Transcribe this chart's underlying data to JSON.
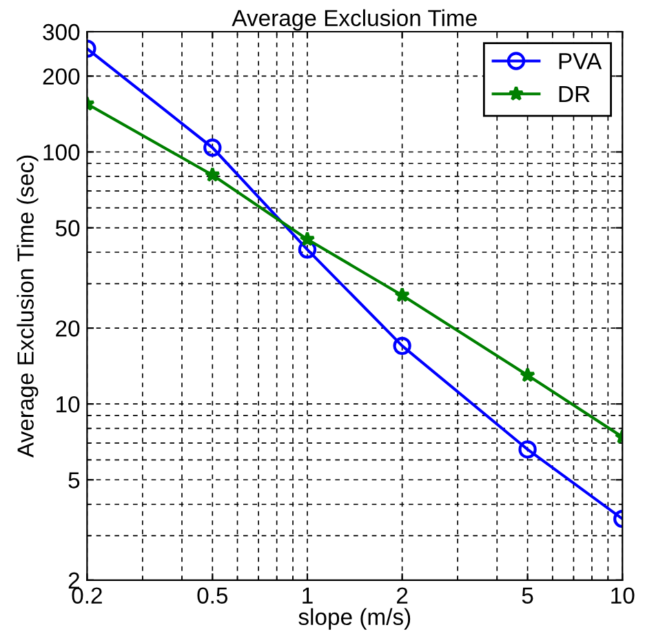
{
  "chart_data": {
    "type": "line",
    "title": "Average Exclusion Time",
    "xlabel": "slope (m/s)",
    "ylabel": "Average Exclusion Time (sec)",
    "x": [
      0.2,
      0.5,
      1,
      2,
      5,
      10
    ],
    "series": [
      {
        "name": "PVA",
        "color": "#0000ff",
        "marker": "circle",
        "values": [
          257,
          104,
          41,
          17,
          6.6,
          3.5
        ]
      },
      {
        "name": "DR",
        "color": "#008000",
        "marker": "star",
        "values": [
          155,
          81,
          45,
          27,
          13,
          7.4
        ]
      }
    ],
    "log": "xy",
    "xlim": [
      0.2,
      10
    ],
    "ylim": [
      2,
      300
    ],
    "xticks": [
      0.2,
      0.5,
      1,
      2,
      5,
      10
    ],
    "yticks": [
      2,
      5,
      10,
      20,
      50,
      100,
      200,
      300
    ],
    "grid": true,
    "legend": "top right",
    "line_style": "solid"
  }
}
